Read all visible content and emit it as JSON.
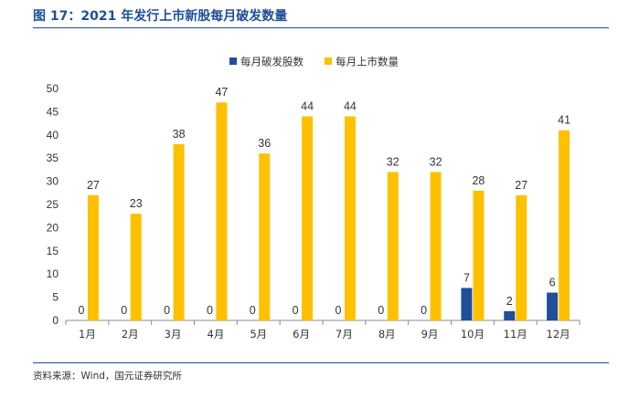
{
  "figure": {
    "title": "图 17：2021 年发行上市新股每月破发数量",
    "source": "资料来源：Wind，国元证券研究所"
  },
  "colors": {
    "title_blue": "#1f4e9a",
    "series_blue": "#1f4e9a",
    "series_gold": "#ffc000"
  },
  "chart_data": {
    "type": "bar",
    "categories": [
      "1月",
      "2月",
      "3月",
      "4月",
      "5月",
      "6月",
      "7月",
      "8月",
      "9月",
      "10月",
      "11月",
      "12月"
    ],
    "series": [
      {
        "name": "每月破发股数",
        "color": "#1f4e9a",
        "values": [
          0,
          0,
          0,
          0,
          0,
          0,
          0,
          0,
          0,
          7,
          2,
          6
        ]
      },
      {
        "name": "每月上市数量",
        "color": "#ffc000",
        "values": [
          27,
          23,
          38,
          47,
          36,
          44,
          44,
          32,
          32,
          28,
          27,
          41
        ]
      }
    ],
    "ylim": [
      0,
      50
    ],
    "yticks": [
      0,
      5,
      10,
      15,
      20,
      25,
      30,
      35,
      40,
      45,
      50
    ],
    "legend_position": "top-center",
    "grid": false,
    "data_labels": true
  }
}
